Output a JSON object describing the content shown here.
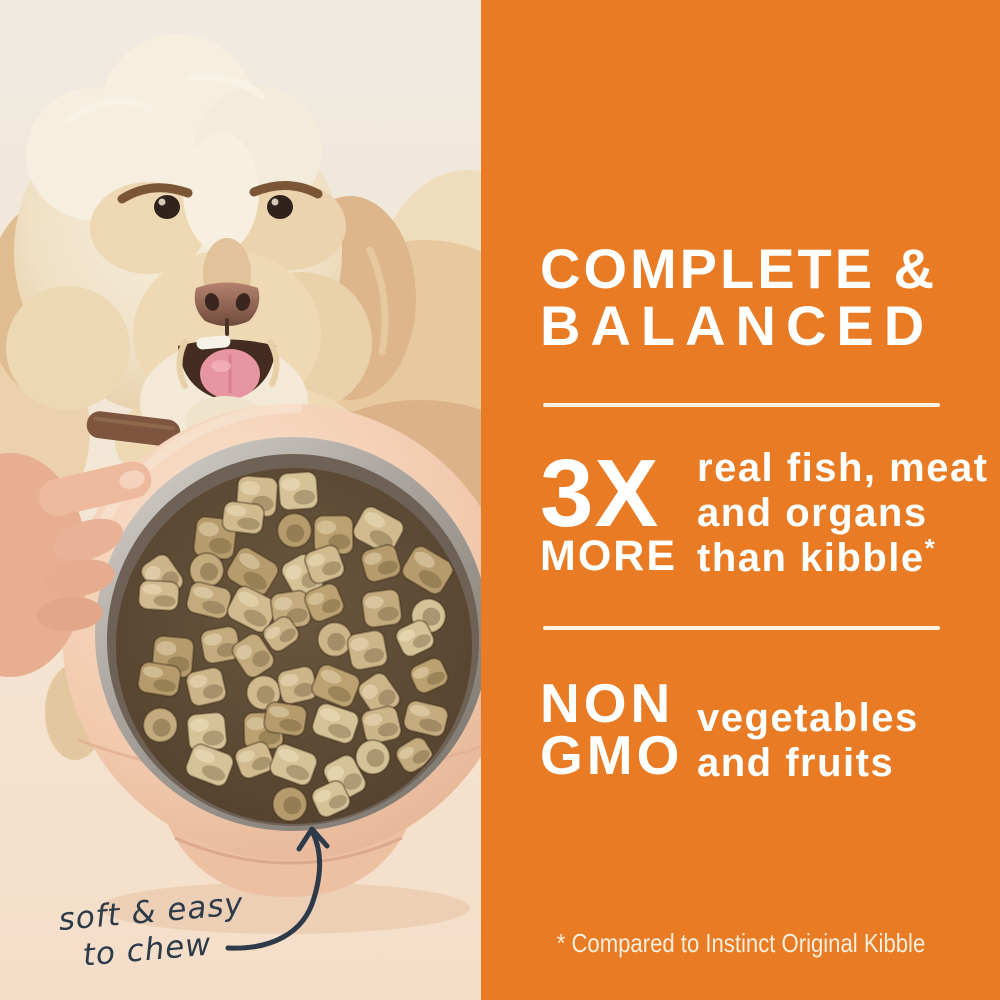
{
  "colors": {
    "panel_orange": "#E87B24",
    "divider_cream": "#FAF2E2",
    "footnote_cream": "#F8EEDC",
    "handwriting_navy": "#2D3A4A",
    "bowl_peach": "#F2C9AD",
    "kibble_tan": "#C8B183"
  },
  "photo": {
    "caption": {
      "line1": "soft & easy",
      "line2": "to chew"
    }
  },
  "panel": {
    "headline": {
      "line1": "COMPLETE &",
      "line2": "BALANCED"
    },
    "stats": [
      {
        "stat_line1": "3X",
        "stat_line2": "MORE",
        "desc_line1": "real fish, meat",
        "desc_line2": "and organs",
        "desc_line3": "than kibble",
        "marker": "*"
      },
      {
        "stat_line1": "NON",
        "stat_line2": "GMO",
        "desc_line1": "vegetables",
        "desc_line2": "and fruits"
      }
    ],
    "footnote": "* Compared to Instinct Original Kibble"
  }
}
